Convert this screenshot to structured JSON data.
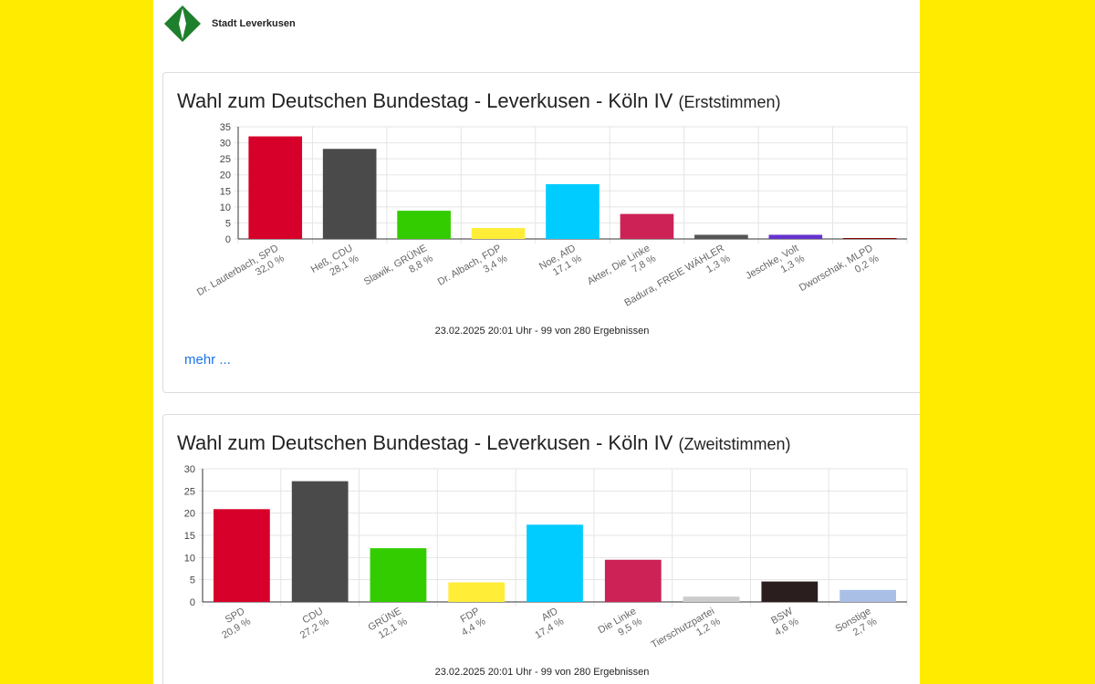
{
  "header": {
    "logo_text": "Stadt Leverkusen",
    "logo_colors": {
      "dark": "#1e7f2c",
      "light": "#ffffff"
    }
  },
  "cards": [
    {
      "title": "Wahl zum Deutschen Bundestag - Leverkusen - Köln IV",
      "title_suffix": "(Erststimmen)",
      "footnote": "23.02.2025 20:01 Uhr - 99 von 280 Ergebnissen",
      "more_link": "mehr ..."
    },
    {
      "title": "Wahl zum Deutschen Bundestag - Leverkusen - Köln IV",
      "title_suffix": "(Zweitstimmen)",
      "footnote": "23.02.2025 20:01 Uhr - 99 von 280 Ergebnissen"
    }
  ],
  "chart_data": [
    {
      "type": "bar",
      "title": "Erststimmen",
      "categories": [
        "Dr. Lauterbach, SPD",
        "Heß, CDU",
        "Slawik, GRÜNE",
        "Dr. Albach, FDP",
        "Noe, AfD",
        "Akter, Die Linke",
        "Badura, FREIE WÄHLER",
        "Jeschke, Volt",
        "Dworschak, MLPD"
      ],
      "value_labels": [
        "32,0 %",
        "28,1 %",
        "8,8 %",
        "3,4 %",
        "17,1 %",
        "7,8 %",
        "1,3 %",
        "1,3 %",
        "0,2 %"
      ],
      "values": [
        32.0,
        28.1,
        8.8,
        3.4,
        17.1,
        7.8,
        1.3,
        1.3,
        0.2
      ],
      "colors": [
        "#d7002a",
        "#4a4a4a",
        "#33cc00",
        "#ffed38",
        "#00ccff",
        "#cc2255",
        "#555555",
        "#6633cc",
        "#8b0000"
      ],
      "ylim": [
        0,
        35
      ],
      "yticks": [
        0,
        5,
        10,
        15,
        20,
        25,
        30,
        35
      ],
      "grid": true
    },
    {
      "type": "bar",
      "title": "Zweitstimmen",
      "categories": [
        "SPD",
        "CDU",
        "GRÜNE",
        "FDP",
        "AfD",
        "Die Linke",
        "Tierschutzpartei",
        "BSW",
        "Sonstige"
      ],
      "value_labels": [
        "20,9 %",
        "27,2 %",
        "12,1 %",
        "4,4 %",
        "17,4 %",
        "9,5 %",
        "1,2 %",
        "4,6 %",
        "2,7 %"
      ],
      "values": [
        20.9,
        27.2,
        12.1,
        4.4,
        17.4,
        9.5,
        1.2,
        4.6,
        2.7
      ],
      "colors": [
        "#d7002a",
        "#4a4a4a",
        "#33cc00",
        "#ffed38",
        "#00ccff",
        "#cc2255",
        "#cccccc",
        "#2b1e1e",
        "#aabfe6"
      ],
      "ylim": [
        0,
        30
      ],
      "yticks": [
        0,
        5,
        10,
        15,
        20,
        25,
        30
      ],
      "grid": true
    }
  ]
}
